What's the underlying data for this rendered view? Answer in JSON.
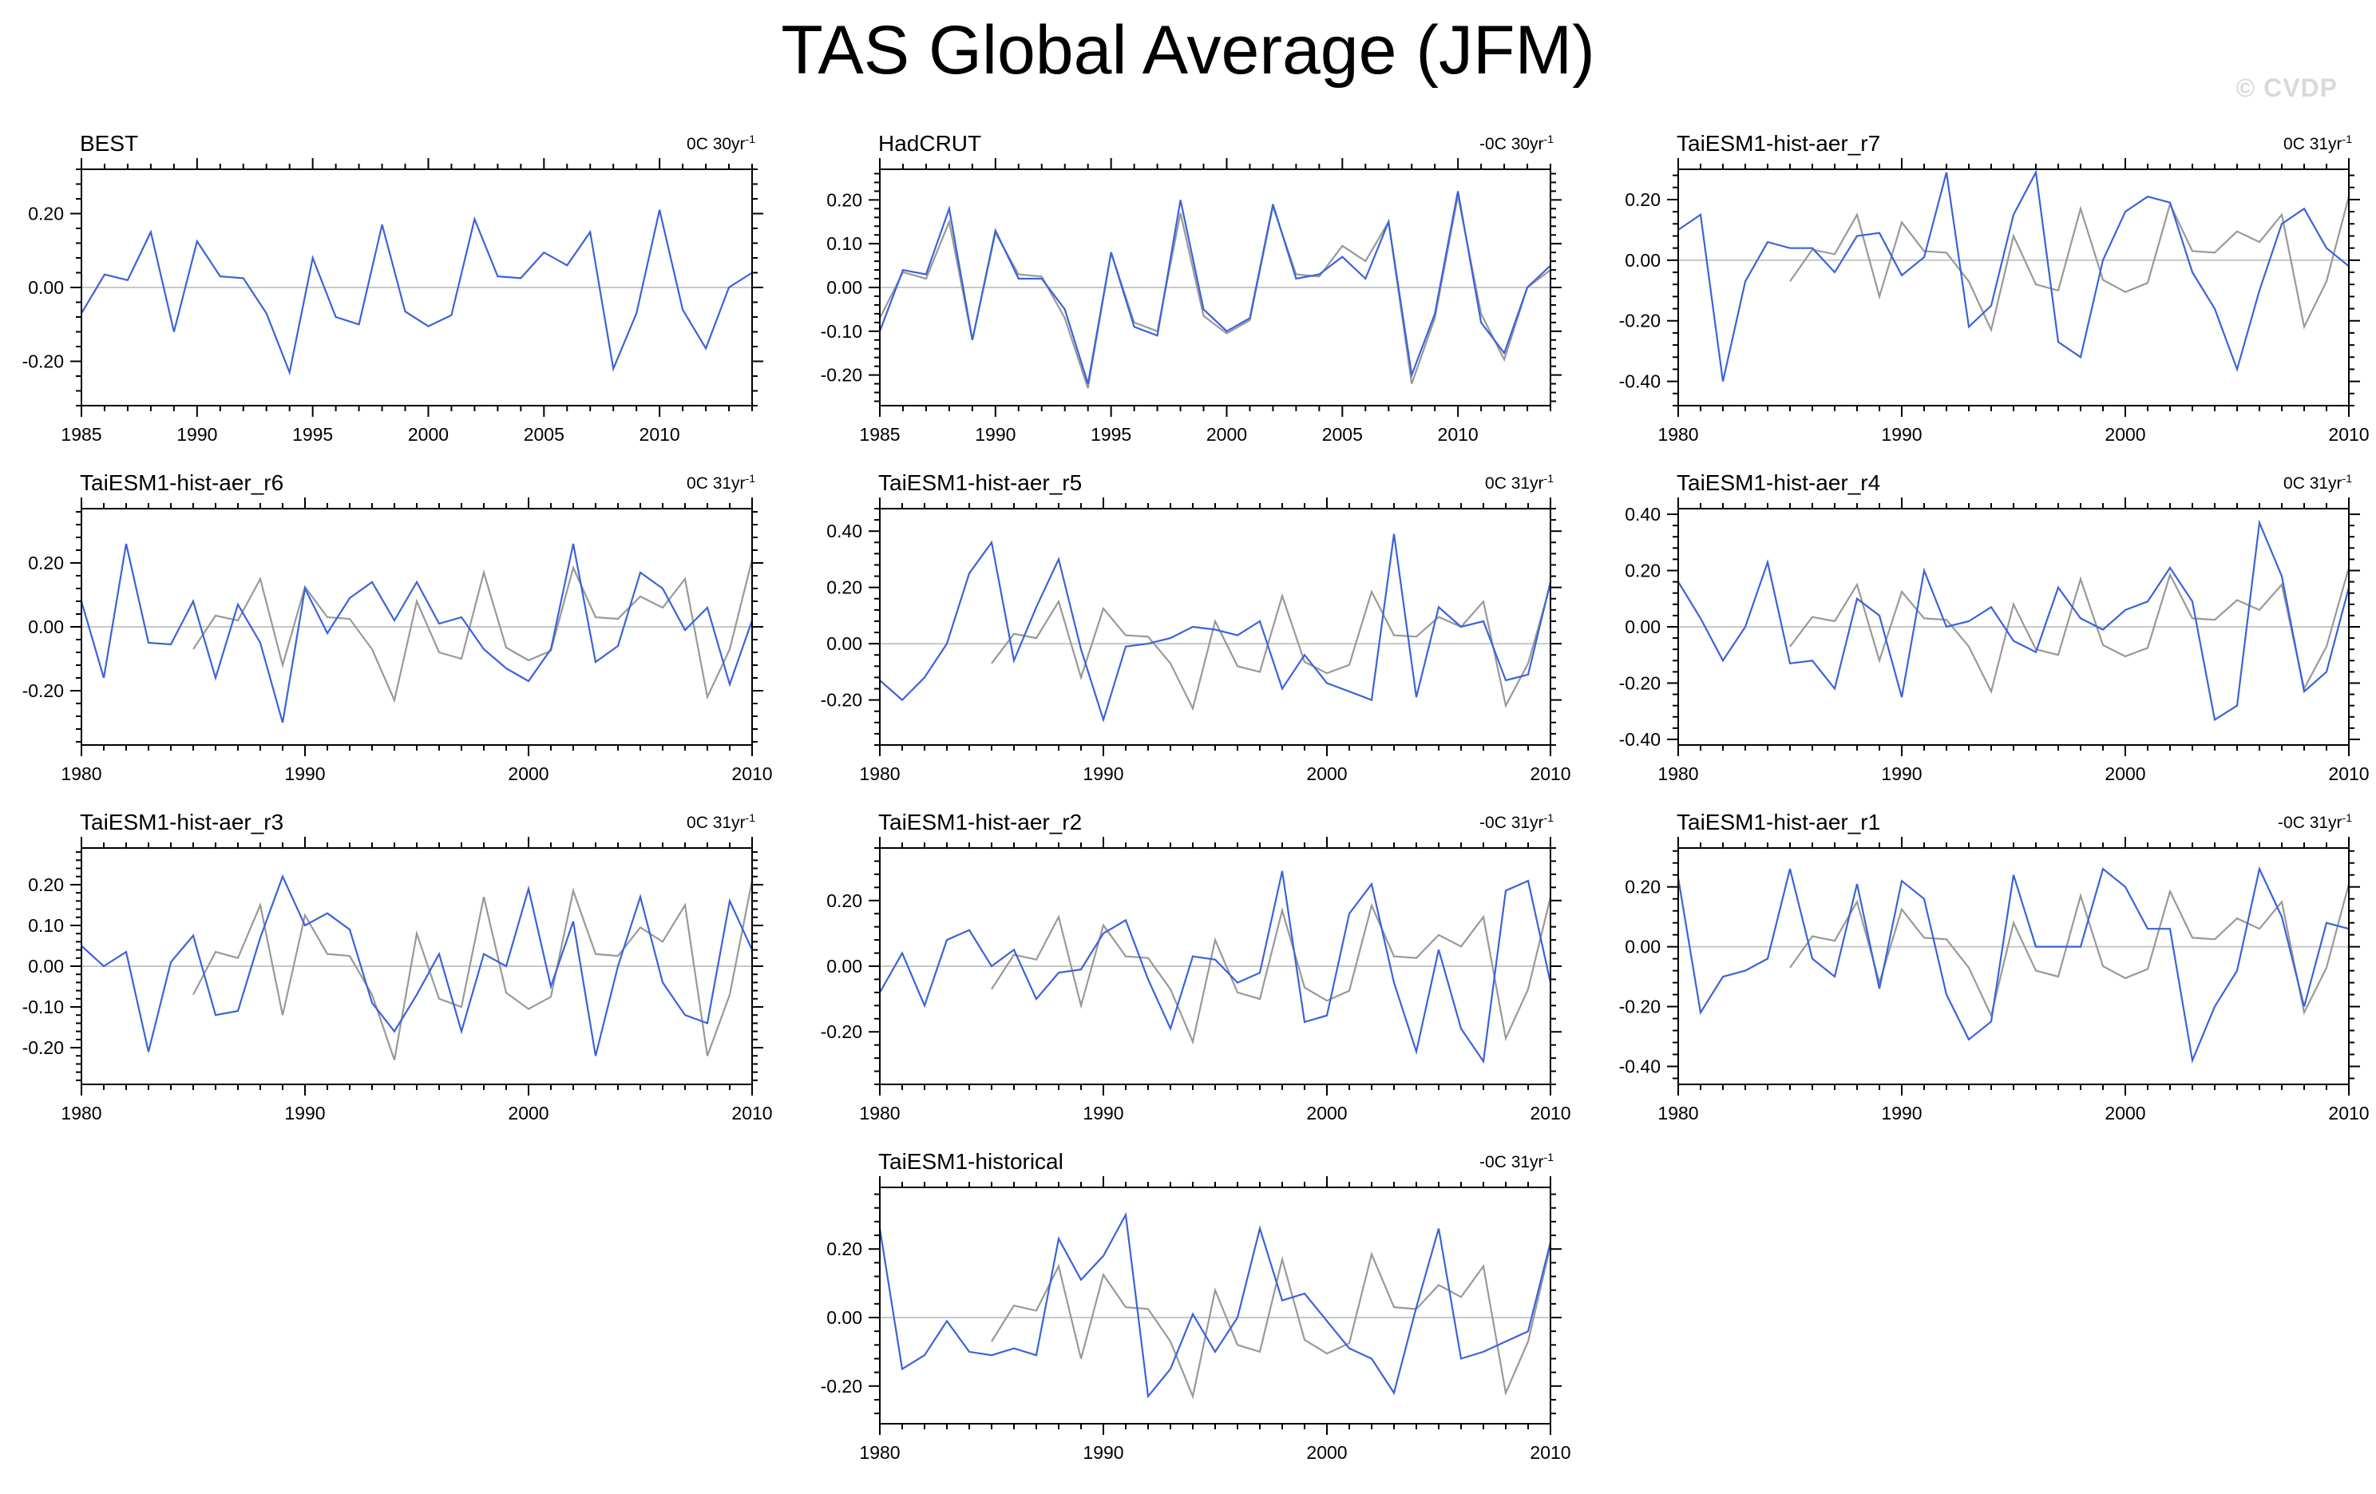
{
  "figure": {
    "title": "TAS Global Average (JFM)",
    "watermark": "© CVDP",
    "colors": {
      "model": "#3b63d8",
      "obs": "#999999",
      "zero": "#c8c8c8",
      "axes": "#000000"
    }
  },
  "chart_data": [
    {
      "type": "line",
      "name": "BEST",
      "title": "BEST",
      "trend": {
        "value": "0C 30yr",
        "exp": "-1"
      },
      "xlim": [
        1985,
        2014
      ],
      "ylim": [
        -0.32,
        0.32
      ],
      "xticks": [
        1985,
        1990,
        1995,
        2000,
        2005,
        2010
      ],
      "xtick_labels": [
        "1985",
        "1990",
        "1995",
        "2000",
        "2005",
        "2010"
      ],
      "yticks": [
        -0.2,
        0,
        0.2
      ],
      "ytick_labels": [
        "-0.20",
        "0.00",
        "0.20"
      ],
      "series": [
        {
          "name": "BEST",
          "color": "#3b63d8",
          "x_start": 1985,
          "values": [
            -0.07,
            0.035,
            0.02,
            0.15,
            -0.12,
            0.125,
            0.03,
            0.025,
            -0.07,
            -0.23,
            0.08,
            -0.08,
            -0.1,
            0.17,
            -0.065,
            -0.105,
            -0.075,
            0.185,
            0.03,
            0.025,
            0.095,
            0.06,
            0.15,
            -0.22,
            -0.07,
            0.21,
            -0.06,
            -0.165,
            0.0,
            0.04
          ]
        }
      ]
    },
    {
      "type": "line",
      "name": "HadCRUT",
      "title": "HadCRUT",
      "trend": {
        "value": "-0C 30yr",
        "exp": "-1"
      },
      "xlim": [
        1985,
        2014
      ],
      "ylim": [
        -0.27,
        0.27
      ],
      "xticks": [
        1985,
        1990,
        1995,
        2000,
        2005,
        2010
      ],
      "xtick_labels": [
        "1985",
        "1990",
        "1995",
        "2000",
        "2005",
        "2010"
      ],
      "yticks": [
        -0.2,
        -0.1,
        0,
        0.1,
        0.2
      ],
      "ytick_labels": [
        "-0.20",
        "-0.10",
        "0.00",
        "0.10",
        "0.20"
      ],
      "series": [
        {
          "name": "BEST",
          "color": "#999999",
          "x_start": 1985,
          "values": [
            -0.07,
            0.035,
            0.02,
            0.15,
            -0.12,
            0.125,
            0.03,
            0.025,
            -0.07,
            -0.23,
            0.08,
            -0.08,
            -0.1,
            0.17,
            -0.065,
            -0.105,
            -0.075,
            0.185,
            0.03,
            0.025,
            0.095,
            0.06,
            0.15,
            -0.22,
            -0.07,
            0.21,
            -0.06,
            -0.165,
            0.0,
            0.04
          ]
        },
        {
          "name": "HadCRUT",
          "color": "#3b63d8",
          "x_start": 1985,
          "values": [
            -0.1,
            0.04,
            0.03,
            0.18,
            -0.12,
            0.13,
            0.02,
            0.02,
            -0.05,
            -0.22,
            0.08,
            -0.09,
            -0.11,
            0.2,
            -0.05,
            -0.1,
            -0.07,
            0.19,
            0.02,
            0.03,
            0.07,
            0.02,
            0.15,
            -0.2,
            -0.06,
            0.22,
            -0.08,
            -0.15,
            0.0,
            0.05
          ]
        }
      ]
    },
    {
      "type": "line",
      "name": "TaiESM1-hist-aer_r7",
      "title": "TaiESM1-hist-aer_r7",
      "trend": {
        "value": "0C 31yr",
        "exp": "-1"
      },
      "xlim": [
        1980,
        2010
      ],
      "ylim": [
        -0.48,
        0.3
      ],
      "xticks": [
        1980,
        1990,
        2000,
        2010
      ],
      "xtick_labels": [
        "1980",
        "1990",
        "2000",
        "2010"
      ],
      "yticks": [
        -0.4,
        -0.2,
        0,
        0.2
      ],
      "ytick_labels": [
        "-0.40",
        "-0.20",
        "0.00",
        "0.20"
      ],
      "series": [
        {
          "name": "BEST",
          "color": "#999999",
          "x_start": 1985,
          "values": [
            -0.07,
            0.035,
            0.02,
            0.15,
            -0.12,
            0.125,
            0.03,
            0.025,
            -0.07,
            -0.23,
            0.08,
            -0.08,
            -0.1,
            0.17,
            -0.065,
            -0.105,
            -0.075,
            0.185,
            0.03,
            0.025,
            0.095,
            0.06,
            0.15,
            -0.22,
            -0.07,
            0.21
          ]
        },
        {
          "name": "TaiESM1-hist-aer_r7",
          "color": "#3b63d8",
          "x_start": 1980,
          "values": [
            0.1,
            0.15,
            -0.4,
            -0.07,
            0.06,
            0.04,
            0.04,
            -0.04,
            0.08,
            0.09,
            -0.05,
            0.01,
            0.29,
            -0.22,
            -0.15,
            0.15,
            0.29,
            -0.27,
            -0.32,
            0.0,
            0.16,
            0.21,
            0.19,
            -0.04,
            -0.16,
            -0.36,
            -0.1,
            0.12,
            0.17,
            0.04,
            -0.02
          ]
        }
      ]
    },
    {
      "type": "line",
      "name": "TaiESM1-hist-aer_r6",
      "title": "TaiESM1-hist-aer_r6",
      "trend": {
        "value": "0C 31yr",
        "exp": "-1"
      },
      "xlim": [
        1980,
        2010
      ],
      "ylim": [
        -0.37,
        0.37
      ],
      "xticks": [
        1980,
        1990,
        2000,
        2010
      ],
      "xtick_labels": [
        "1980",
        "1990",
        "2000",
        "2010"
      ],
      "yticks": [
        -0.2,
        0,
        0.2
      ],
      "ytick_labels": [
        "-0.20",
        "0.00",
        "0.20"
      ],
      "series": [
        {
          "name": "BEST",
          "color": "#999999",
          "x_start": 1985,
          "values": [
            -0.07,
            0.035,
            0.02,
            0.15,
            -0.12,
            0.125,
            0.03,
            0.025,
            -0.07,
            -0.23,
            0.08,
            -0.08,
            -0.1,
            0.17,
            -0.065,
            -0.105,
            -0.075,
            0.185,
            0.03,
            0.025,
            0.095,
            0.06,
            0.15,
            -0.22,
            -0.07,
            0.21
          ]
        },
        {
          "name": "TaiESM1-hist-aer_r6",
          "color": "#3b63d8",
          "x_start": 1980,
          "values": [
            0.08,
            -0.16,
            0.26,
            -0.05,
            -0.055,
            0.08,
            -0.16,
            0.07,
            -0.05,
            -0.3,
            0.12,
            -0.02,
            0.09,
            0.14,
            0.02,
            0.14,
            0.01,
            0.03,
            -0.07,
            -0.13,
            -0.17,
            -0.07,
            0.26,
            -0.11,
            -0.06,
            0.17,
            0.12,
            -0.01,
            0.06,
            -0.18,
            0.02
          ]
        }
      ]
    },
    {
      "type": "line",
      "name": "TaiESM1-hist-aer_r5",
      "title": "TaiESM1-hist-aer_r5",
      "trend": {
        "value": "0C 31yr",
        "exp": "-1"
      },
      "xlim": [
        1980,
        2010
      ],
      "ylim": [
        -0.36,
        0.48
      ],
      "xticks": [
        1980,
        1990,
        2000,
        2010
      ],
      "xtick_labels": [
        "1980",
        "1990",
        "2000",
        "2010"
      ],
      "yticks": [
        -0.2,
        0,
        0.2,
        0.4
      ],
      "ytick_labels": [
        "-0.20",
        "0.00",
        "0.20",
        "0.40"
      ],
      "series": [
        {
          "name": "BEST",
          "color": "#999999",
          "x_start": 1985,
          "values": [
            -0.07,
            0.035,
            0.02,
            0.15,
            -0.12,
            0.125,
            0.03,
            0.025,
            -0.07,
            -0.23,
            0.08,
            -0.08,
            -0.1,
            0.17,
            -0.065,
            -0.105,
            -0.075,
            0.185,
            0.03,
            0.025,
            0.095,
            0.06,
            0.15,
            -0.22,
            -0.07,
            0.21
          ]
        },
        {
          "name": "TaiESM1-hist-aer_r5",
          "color": "#3b63d8",
          "x_start": 1980,
          "values": [
            -0.13,
            -0.2,
            -0.12,
            0.0,
            0.25,
            0.36,
            -0.06,
            0.13,
            0.3,
            -0.02,
            -0.27,
            -0.01,
            0.0,
            0.02,
            0.06,
            0.05,
            0.03,
            0.08,
            -0.16,
            -0.04,
            -0.14,
            -0.17,
            -0.2,
            0.39,
            -0.19,
            0.13,
            0.06,
            0.08,
            -0.13,
            -0.11,
            0.22
          ]
        }
      ]
    },
    {
      "type": "line",
      "name": "TaiESM1-hist-aer_r4",
      "title": "TaiESM1-hist-aer_r4",
      "trend": {
        "value": "0C 31yr",
        "exp": "-1"
      },
      "xlim": [
        1980,
        2010
      ],
      "ylim": [
        -0.42,
        0.42
      ],
      "xticks": [
        1980,
        1990,
        2000,
        2010
      ],
      "xtick_labels": [
        "1980",
        "1990",
        "2000",
        "2010"
      ],
      "yticks": [
        -0.4,
        -0.2,
        0,
        0.2,
        0.4
      ],
      "ytick_labels": [
        "-0.40",
        "-0.20",
        "0.00",
        "0.20",
        "0.40"
      ],
      "series": [
        {
          "name": "BEST",
          "color": "#999999",
          "x_start": 1985,
          "values": [
            -0.07,
            0.035,
            0.02,
            0.15,
            -0.12,
            0.125,
            0.03,
            0.025,
            -0.07,
            -0.23,
            0.08,
            -0.08,
            -0.1,
            0.17,
            -0.065,
            -0.105,
            -0.075,
            0.185,
            0.03,
            0.025,
            0.095,
            0.06,
            0.15,
            -0.22,
            -0.07,
            0.21
          ]
        },
        {
          "name": "TaiESM1-hist-aer_r4",
          "color": "#3b63d8",
          "x_start": 1980,
          "values": [
            0.16,
            0.03,
            -0.12,
            0.0,
            0.23,
            -0.13,
            -0.12,
            -0.22,
            0.1,
            0.04,
            -0.25,
            0.2,
            0.0,
            0.02,
            0.07,
            -0.05,
            -0.09,
            0.14,
            0.03,
            -0.01,
            0.06,
            0.09,
            0.21,
            0.09,
            -0.33,
            -0.28,
            0.37,
            0.18,
            -0.23,
            -0.16,
            0.14
          ]
        }
      ]
    },
    {
      "type": "line",
      "name": "TaiESM1-hist-aer_r3",
      "title": "TaiESM1-hist-aer_r3",
      "trend": {
        "value": "0C 31yr",
        "exp": "-1"
      },
      "xlim": [
        1980,
        2010
      ],
      "ylim": [
        -0.29,
        0.29
      ],
      "xticks": [
        1980,
        1990,
        2000,
        2010
      ],
      "xtick_labels": [
        "1980",
        "1990",
        "2000",
        "2010"
      ],
      "yticks": [
        -0.2,
        -0.1,
        0,
        0.1,
        0.2
      ],
      "ytick_labels": [
        "-0.20",
        "-0.10",
        "0.00",
        "0.10",
        "0.20"
      ],
      "series": [
        {
          "name": "BEST",
          "color": "#999999",
          "x_start": 1985,
          "values": [
            -0.07,
            0.035,
            0.02,
            0.15,
            -0.12,
            0.125,
            0.03,
            0.025,
            -0.07,
            -0.23,
            0.08,
            -0.08,
            -0.1,
            0.17,
            -0.065,
            -0.105,
            -0.075,
            0.185,
            0.03,
            0.025,
            0.095,
            0.06,
            0.15,
            -0.22,
            -0.07,
            0.21
          ]
        },
        {
          "name": "TaiESM1-hist-aer_r3",
          "color": "#3b63d8",
          "x_start": 1980,
          "values": [
            0.05,
            0.0,
            0.035,
            -0.21,
            0.01,
            0.075,
            -0.12,
            -0.11,
            0.07,
            0.22,
            0.1,
            0.13,
            0.09,
            -0.09,
            -0.16,
            -0.07,
            0.03,
            -0.16,
            0.03,
            0.0,
            0.19,
            -0.05,
            0.11,
            -0.22,
            0.0,
            0.17,
            -0.04,
            -0.12,
            -0.14,
            0.16,
            0.04
          ]
        }
      ]
    },
    {
      "type": "line",
      "name": "TaiESM1-hist-aer_r2",
      "title": "TaiESM1-hist-aer_r2",
      "trend": {
        "value": "-0C 31yr",
        "exp": "-1"
      },
      "xlim": [
        1980,
        2010
      ],
      "ylim": [
        -0.36,
        0.36
      ],
      "xticks": [
        1980,
        1990,
        2000,
        2010
      ],
      "xtick_labels": [
        "1980",
        "1990",
        "2000",
        "2010"
      ],
      "yticks": [
        -0.2,
        0,
        0.2
      ],
      "ytick_labels": [
        "-0.20",
        "0.00",
        "0.20"
      ],
      "series": [
        {
          "name": "BEST",
          "color": "#999999",
          "x_start": 1985,
          "values": [
            -0.07,
            0.035,
            0.02,
            0.15,
            -0.12,
            0.125,
            0.03,
            0.025,
            -0.07,
            -0.23,
            0.08,
            -0.08,
            -0.1,
            0.17,
            -0.065,
            -0.105,
            -0.075,
            0.185,
            0.03,
            0.025,
            0.095,
            0.06,
            0.15,
            -0.22,
            -0.07,
            0.21
          ]
        },
        {
          "name": "TaiESM1-hist-aer_r2",
          "color": "#3b63d8",
          "x_start": 1980,
          "values": [
            -0.08,
            0.04,
            -0.12,
            0.08,
            0.11,
            0.0,
            0.05,
            -0.1,
            -0.02,
            -0.01,
            0.1,
            0.14,
            -0.04,
            -0.19,
            0.03,
            0.02,
            -0.05,
            -0.02,
            0.29,
            -0.17,
            -0.15,
            0.16,
            0.25,
            -0.05,
            -0.26,
            0.05,
            -0.19,
            -0.29,
            0.23,
            0.26,
            -0.05
          ]
        }
      ]
    },
    {
      "type": "line",
      "name": "TaiESM1-hist-aer_r1",
      "title": "TaiESM1-hist-aer_r1",
      "trend": {
        "value": "-0C 31yr",
        "exp": "-1"
      },
      "xlim": [
        1980,
        2010
      ],
      "ylim": [
        -0.46,
        0.33
      ],
      "xticks": [
        1980,
        1990,
        2000,
        2010
      ],
      "xtick_labels": [
        "1980",
        "1990",
        "2000",
        "2010"
      ],
      "yticks": [
        -0.4,
        -0.2,
        0,
        0.2
      ],
      "ytick_labels": [
        "-0.40",
        "-0.20",
        "0.00",
        "0.20"
      ],
      "series": [
        {
          "name": "BEST",
          "color": "#999999",
          "x_start": 1985,
          "values": [
            -0.07,
            0.035,
            0.02,
            0.15,
            -0.12,
            0.125,
            0.03,
            0.025,
            -0.07,
            -0.23,
            0.08,
            -0.08,
            -0.1,
            0.17,
            -0.065,
            -0.105,
            -0.075,
            0.185,
            0.03,
            0.025,
            0.095,
            0.06,
            0.15,
            -0.22,
            -0.07,
            0.21
          ]
        },
        {
          "name": "TaiESM1-hist-aer_r1",
          "color": "#3b63d8",
          "x_start": 1980,
          "values": [
            0.23,
            -0.22,
            -0.1,
            -0.08,
            -0.04,
            0.26,
            -0.04,
            -0.1,
            0.21,
            -0.14,
            0.22,
            0.16,
            -0.16,
            -0.31,
            -0.25,
            0.24,
            0.0,
            0.0,
            0.0,
            0.26,
            0.2,
            0.06,
            0.06,
            -0.38,
            -0.2,
            -0.08,
            0.26,
            0.1,
            -0.2,
            0.08,
            0.06
          ]
        }
      ]
    },
    {
      "type": "line",
      "name": "TaiESM1-historical",
      "title": "TaiESM1-historical",
      "trend": {
        "value": "-0C 31yr",
        "exp": "-1"
      },
      "xlim": [
        1980,
        2010
      ],
      "ylim": [
        -0.31,
        0.38
      ],
      "xticks": [
        1980,
        1990,
        2000,
        2010
      ],
      "xtick_labels": [
        "1980",
        "1990",
        "2000",
        "2010"
      ],
      "yticks": [
        -0.2,
        0,
        0.2
      ],
      "ytick_labels": [
        "-0.20",
        "0.00",
        "0.20"
      ],
      "series": [
        {
          "name": "BEST",
          "color": "#999999",
          "x_start": 1985,
          "values": [
            -0.07,
            0.035,
            0.02,
            0.15,
            -0.12,
            0.125,
            0.03,
            0.025,
            -0.07,
            -0.23,
            0.08,
            -0.08,
            -0.1,
            0.17,
            -0.065,
            -0.105,
            -0.075,
            0.185,
            0.03,
            0.025,
            0.095,
            0.06,
            0.15,
            -0.22,
            -0.07,
            0.21
          ]
        },
        {
          "name": "TaiESM1-historical",
          "color": "#3b63d8",
          "x_start": 1980,
          "values": [
            0.26,
            -0.15,
            -0.11,
            -0.01,
            -0.1,
            -0.11,
            -0.09,
            -0.11,
            0.23,
            0.11,
            0.18,
            0.3,
            -0.23,
            -0.15,
            0.01,
            -0.1,
            0.0,
            0.26,
            0.05,
            0.07,
            -0.01,
            -0.09,
            -0.12,
            -0.22,
            0.03,
            0.26,
            -0.12,
            -0.1,
            -0.07,
            -0.04,
            0.22
          ]
        }
      ]
    }
  ]
}
